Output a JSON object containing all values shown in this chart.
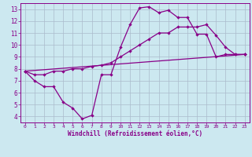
{
  "bg_color": "#cce8f0",
  "grid_color": "#aabbcc",
  "line_color": "#880088",
  "xlabel": "Windchill (Refroidissement éolien,°C)",
  "xlim": [
    -0.5,
    23.5
  ],
  "ylim": [
    3.5,
    13.5
  ],
  "xticks": [
    0,
    1,
    2,
    3,
    4,
    5,
    6,
    7,
    8,
    9,
    10,
    11,
    12,
    13,
    14,
    15,
    16,
    17,
    18,
    19,
    20,
    21,
    22,
    23
  ],
  "yticks": [
    4,
    5,
    6,
    7,
    8,
    9,
    10,
    11,
    12,
    13
  ],
  "line1_x": [
    0,
    1,
    2,
    3,
    4,
    5,
    6,
    7,
    8,
    9,
    10,
    11,
    12,
    13,
    14,
    15,
    16,
    17,
    18,
    19,
    20,
    21,
    22,
    23
  ],
  "line1_y": [
    7.8,
    7.0,
    6.5,
    6.5,
    5.2,
    4.7,
    3.8,
    4.1,
    7.5,
    7.5,
    9.8,
    11.7,
    13.1,
    13.2,
    12.7,
    12.9,
    12.3,
    12.3,
    10.9,
    10.9,
    9.0,
    9.2,
    9.2,
    9.2
  ],
  "line2_x": [
    0,
    1,
    2,
    3,
    4,
    5,
    6,
    7,
    8,
    9,
    10,
    11,
    12,
    13,
    14,
    15,
    16,
    17,
    18,
    19,
    20,
    21,
    22,
    23
  ],
  "line2_y": [
    7.8,
    7.5,
    7.5,
    7.8,
    7.8,
    8.0,
    8.0,
    8.2,
    8.3,
    8.5,
    9.0,
    9.5,
    10.0,
    10.5,
    11.0,
    11.0,
    11.5,
    11.5,
    11.5,
    11.7,
    10.8,
    9.8,
    9.2,
    9.2
  ],
  "line3_x": [
    0,
    23
  ],
  "line3_y": [
    7.8,
    9.2
  ]
}
